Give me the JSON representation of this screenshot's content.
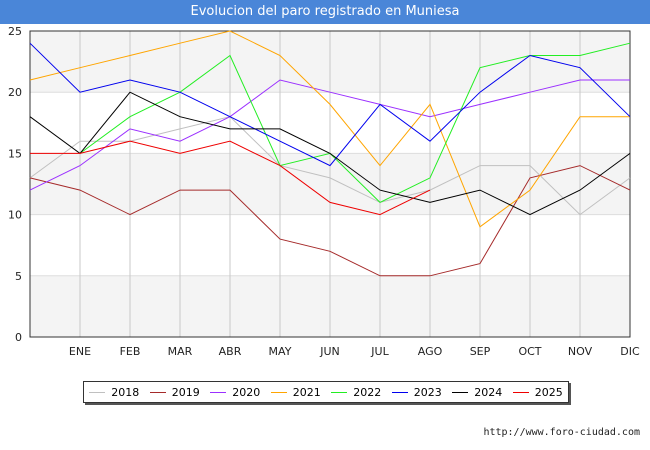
{
  "chart_data": {
    "type": "line",
    "title": "Evolucion del paro registrado en Muniesa",
    "categories": [
      "",
      "ENE",
      "FEB",
      "MAR",
      "ABR",
      "MAY",
      "JUN",
      "JUL",
      "AGO",
      "SEP",
      "OCT",
      "NOV",
      "DIC"
    ],
    "ylim": [
      0,
      25
    ],
    "yticks": [
      0,
      5,
      10,
      15,
      20,
      25
    ],
    "xlabel": "",
    "ylabel": "",
    "grid": true,
    "legend_position": "bottom",
    "series": [
      {
        "name": "2018",
        "color": "#c0c0c0",
        "values": [
          13,
          16,
          16,
          17,
          18,
          14,
          13,
          11,
          12,
          14,
          14,
          10,
          13
        ]
      },
      {
        "name": "2019",
        "color": "#a52a2a",
        "values": [
          13,
          12,
          10,
          12,
          12,
          8,
          7,
          5,
          5,
          6,
          13,
          14,
          12
        ]
      },
      {
        "name": "2020",
        "color": "#9b30ff",
        "values": [
          12,
          14,
          17,
          16,
          18,
          21,
          20,
          19,
          18,
          19,
          20,
          21,
          21
        ]
      },
      {
        "name": "2021",
        "color": "#ffa500",
        "values": [
          21,
          22,
          23,
          24,
          25,
          23,
          19,
          14,
          19,
          9,
          12,
          18,
          18
        ]
      },
      {
        "name": "2022",
        "color": "#22ee22",
        "values": [
          null,
          15,
          18,
          20,
          23,
          14,
          15,
          11,
          13,
          22,
          23,
          23,
          24
        ]
      },
      {
        "name": "2023",
        "color": "#0000ee",
        "values": [
          24,
          20,
          21,
          20,
          18,
          16,
          14,
          19,
          16,
          20,
          23,
          22,
          18
        ]
      },
      {
        "name": "2024",
        "color": "#000000",
        "values": [
          18,
          15,
          20,
          18,
          17,
          17,
          15,
          12,
          11,
          12,
          10,
          12,
          15
        ]
      },
      {
        "name": "2025",
        "color": "#ee0000",
        "values": [
          15,
          15,
          16,
          15,
          16,
          14,
          11,
          10,
          12,
          null,
          null,
          null,
          null
        ]
      }
    ]
  },
  "footer": {
    "url": "http://www.foro-ciudad.com"
  }
}
